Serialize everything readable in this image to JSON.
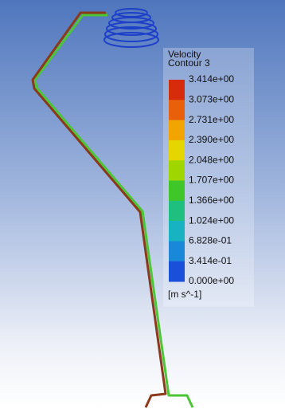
{
  "legend": {
    "title": "Velocity",
    "subtitle": "Contour 3",
    "labels": [
      "3.414e+00",
      "3.073e+00",
      "2.731e+00",
      "2.390e+00",
      "2.048e+00",
      "1.707e+00",
      "1.366e+00",
      "1.024e+00",
      "6.828e-01",
      "3.414e-01",
      "0.000e+00"
    ],
    "unit": "[m s^-1]"
  }
}
